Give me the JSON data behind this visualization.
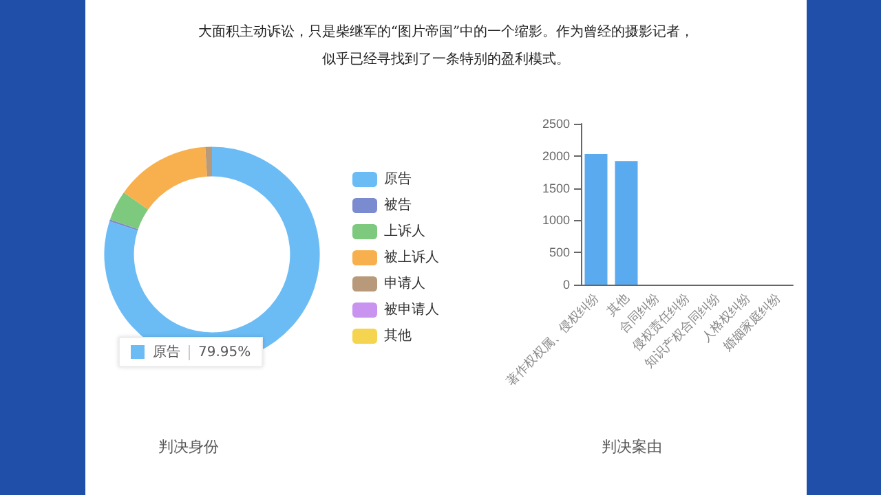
{
  "chart_data": [
    {
      "type": "donut",
      "title": "判决身份",
      "annotations": [
        "大面积主动诉讼，只是柴继军的“图片帝国”中的一个缩影。作为曾经的摄影记者，",
        "似乎已经寻找到了一条特别的盈利模式。"
      ],
      "legend": "right",
      "categories": [
        "原告",
        "被告",
        "上诉人",
        "被上诉人",
        "申请人",
        "被申请人",
        "其他"
      ],
      "values": [
        79.95,
        0.3,
        4.5,
        14.25,
        1.0,
        0,
        0
      ],
      "value_labels": [
        "79.95%",
        null,
        null,
        null,
        null,
        null,
        null
      ],
      "colors": [
        "#6bbcf5",
        "#7b8bd0",
        "#7dc97d",
        "#f7b04d",
        "#b89a7a",
        "#c994f0",
        "#f5d44f"
      ]
    },
    {
      "type": "bar",
      "title": "判决案由",
      "categories": [
        "著作权权属、侵权纠纷",
        "其他",
        "合同纠纷",
        "侵权责任纠纷",
        "知识产权合同纠纷",
        "人格权纠纷",
        "婚姻家庭纠纷"
      ],
      "values": [
        2030,
        1920,
        0,
        0,
        0,
        0,
        0
      ],
      "color": "#5aaaf0",
      "ylim": [
        0,
        2500
      ],
      "yticks": [
        0,
        500,
        1000,
        1500,
        2000,
        2500
      ],
      "grid": false,
      "legend": false
    }
  ]
}
